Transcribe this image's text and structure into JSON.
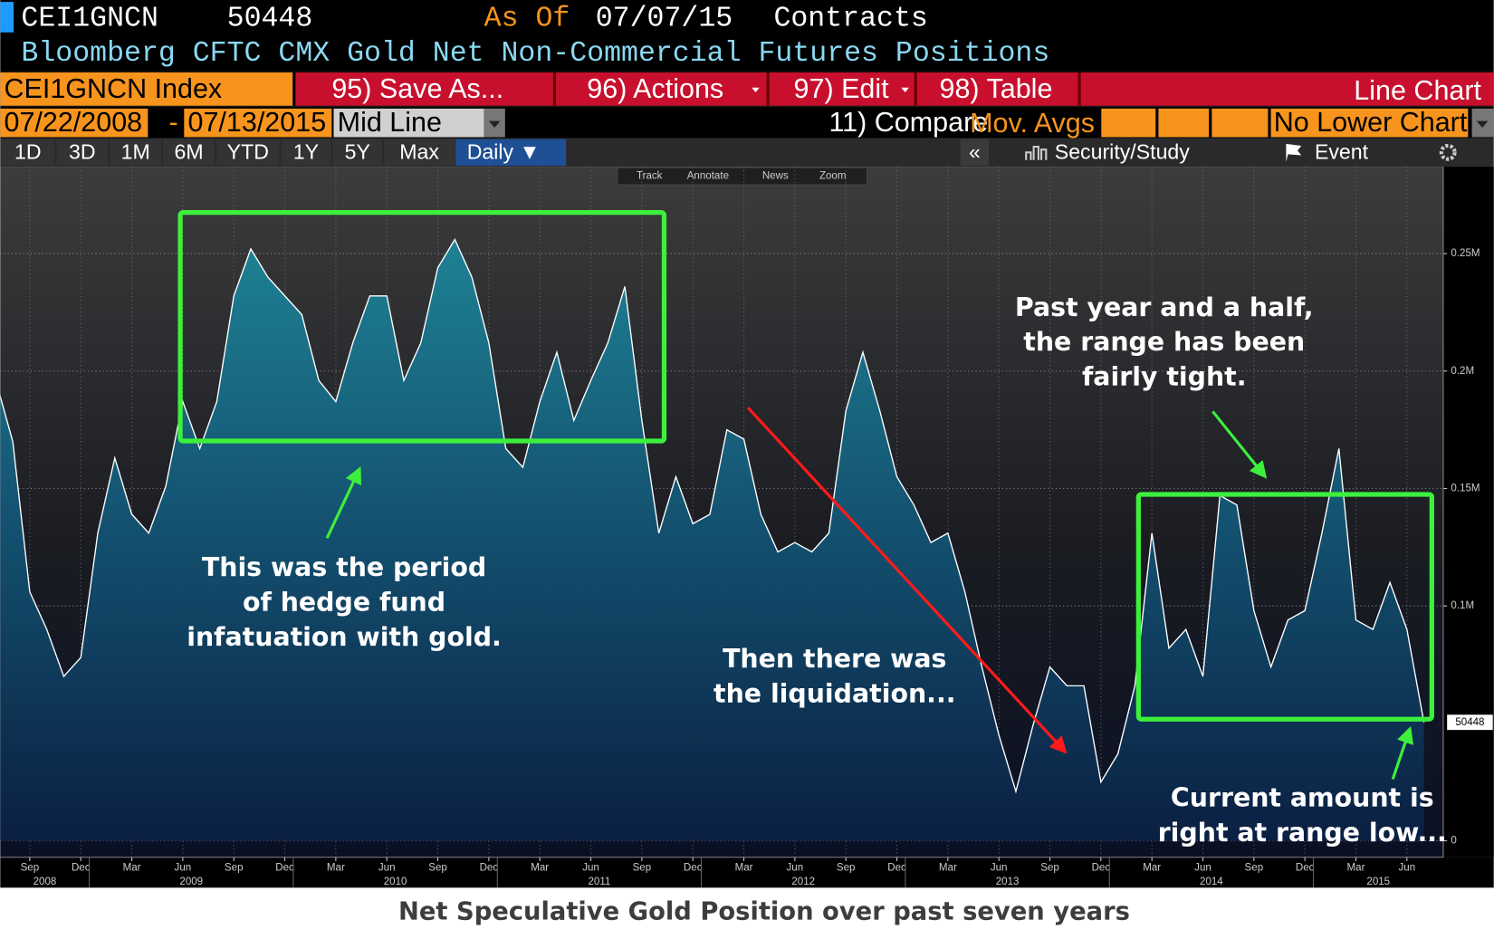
{
  "header": {
    "ticker": "CEI1GNCN",
    "as_of_label": "As Of",
    "as_of_date": "07/07/15",
    "units": "Contracts",
    "title": "Bloomberg CFTC CMX Gold Net Non-Commercial Futures Positions"
  },
  "toolbar": {
    "security": "CEI1GNCN Index",
    "save": "95) Save As...",
    "actions": "96) Actions",
    "edit": "97) Edit",
    "table": "98) Table",
    "chart_kind": "Line Chart",
    "start_date": "07/22/2008",
    "date_sep": "-",
    "end_date": "07/13/2015",
    "line_mode": "Mid Line",
    "compare": "11) Compare",
    "mov_avgs": "Mov. Avgs",
    "lower_chart": "No Lower Chart",
    "periods": [
      "1D",
      "3D",
      "1M",
      "6M",
      "YTD",
      "1Y",
      "5Y",
      "Max"
    ],
    "frequency": "Daily ▼",
    "collapse": "«",
    "study": "Security/Study",
    "event": "Event",
    "tools": [
      "Track",
      "Annotate",
      "News",
      "Zoom"
    ]
  },
  "chart_data": {
    "type": "area",
    "x": [
      "2008-07",
      "2008-08",
      "2008-09",
      "2008-10",
      "2008-11",
      "2008-12",
      "2009-01",
      "2009-02",
      "2009-03",
      "2009-04",
      "2009-05",
      "2009-06",
      "2009-07",
      "2009-08",
      "2009-09",
      "2009-10",
      "2009-11",
      "2009-12",
      "2010-01",
      "2010-02",
      "2010-03",
      "2010-04",
      "2010-05",
      "2010-06",
      "2010-07",
      "2010-08",
      "2010-09",
      "2010-10",
      "2010-11",
      "2010-12",
      "2011-01",
      "2011-02",
      "2011-03",
      "2011-04",
      "2011-05",
      "2011-06",
      "2011-07",
      "2011-08",
      "2011-09",
      "2011-10",
      "2011-11",
      "2011-12",
      "2012-01",
      "2012-02",
      "2012-03",
      "2012-04",
      "2012-05",
      "2012-06",
      "2012-07",
      "2012-08",
      "2012-09",
      "2012-10",
      "2012-11",
      "2012-12",
      "2013-01",
      "2013-02",
      "2013-03",
      "2013-04",
      "2013-05",
      "2013-06",
      "2013-07",
      "2013-08",
      "2013-09",
      "2013-10",
      "2013-11",
      "2013-12",
      "2014-01",
      "2014-02",
      "2014-03",
      "2014-04",
      "2014-05",
      "2014-06",
      "2014-07",
      "2014-08",
      "2014-09",
      "2014-10",
      "2014-11",
      "2014-12",
      "2015-01",
      "2015-02",
      "2015-03",
      "2015-04",
      "2015-05",
      "2015-06",
      "2015-07"
    ],
    "series": [
      {
        "name": "CEI1GNCN",
        "color": "#ffffff",
        "values": [
          196000,
          170000,
          106000,
          90000,
          70000,
          78000,
          131000,
          163000,
          139000,
          131000,
          151000,
          187000,
          167000,
          187000,
          232000,
          252000,
          240000,
          232000,
          224000,
          196000,
          187000,
          212000,
          232000,
          232000,
          196000,
          212000,
          244000,
          256000,
          240000,
          212000,
          167000,
          159000,
          187000,
          208000,
          179000,
          196000,
          212000,
          236000,
          179000,
          131000,
          155000,
          135000,
          139000,
          175000,
          171000,
          139000,
          123000,
          127000,
          123000,
          131000,
          183000,
          208000,
          183000,
          155000,
          143000,
          127000,
          131000,
          106000,
          74000,
          45000,
          21000,
          49000,
          74000,
          66000,
          66000,
          25000,
          37000,
          66000,
          131000,
          82000,
          90000,
          70000,
          147000,
          143000,
          98000,
          74000,
          94000,
          98000,
          131000,
          167000,
          94000,
          90000,
          110000,
          90000,
          50448
        ]
      }
    ],
    "ylim": [
      -7000,
      287000
    ],
    "yticks": [
      0,
      {
        "value": 100000,
        "label": "0.1M"
      },
      {
        "value": 150000,
        "label": "0.15M"
      },
      {
        "value": 200000,
        "label": "0.2M"
      },
      {
        "value": 250000,
        "label": "0.25M"
      }
    ],
    "xticks": [
      {
        "value": "2008-09",
        "label": "Sep"
      },
      {
        "value": "2008-12",
        "label": "Dec"
      },
      {
        "value": "2009-03",
        "label": "Mar"
      },
      {
        "value": "2009-06",
        "label": "Jun"
      },
      {
        "value": "2009-09",
        "label": "Sep"
      },
      {
        "value": "2009-12",
        "label": "Dec"
      },
      {
        "value": "2010-03",
        "label": "Mar"
      },
      {
        "value": "2010-06",
        "label": "Jun"
      },
      {
        "value": "2010-09",
        "label": "Sep"
      },
      {
        "value": "2010-12",
        "label": "Dec"
      },
      {
        "value": "2011-03",
        "label": "Mar"
      },
      {
        "value": "2011-06",
        "label": "Jun"
      },
      {
        "value": "2011-09",
        "label": "Sep"
      },
      {
        "value": "2011-12",
        "label": "Dec"
      },
      {
        "value": "2012-03",
        "label": "Mar"
      },
      {
        "value": "2012-06",
        "label": "Jun"
      },
      {
        "value": "2012-09",
        "label": "Sep"
      },
      {
        "value": "2012-12",
        "label": "Dec"
      },
      {
        "value": "2013-03",
        "label": "Mar"
      },
      {
        "value": "2013-06",
        "label": "Jun"
      },
      {
        "value": "2013-09",
        "label": "Sep"
      },
      {
        "value": "2013-12",
        "label": "Dec"
      },
      {
        "value": "2014-03",
        "label": "Mar"
      },
      {
        "value": "2014-06",
        "label": "Jun"
      },
      {
        "value": "2014-09",
        "label": "Sep"
      },
      {
        "value": "2014-12",
        "label": "Dec"
      },
      {
        "value": "2015-03",
        "label": "Mar"
      },
      {
        "value": "2015-06",
        "label": "Jun"
      }
    ],
    "year_labels": [
      2008,
      2009,
      2010,
      2011,
      2012,
      2013,
      2014,
      2015
    ],
    "grid": true,
    "annotations": [
      {
        "lines": [
          "This was the period",
          "of hedge fund",
          "infatuation with gold."
        ]
      },
      {
        "lines": [
          "Then there was",
          "the liquidation..."
        ]
      },
      {
        "lines": [
          "Past year and a half,",
          "the range has been",
          "fairly tight."
        ]
      },
      {
        "lines": [
          "Current amount is",
          "right at range low..."
        ]
      }
    ],
    "caption": "Net Speculative Gold Position over past seven years"
  }
}
